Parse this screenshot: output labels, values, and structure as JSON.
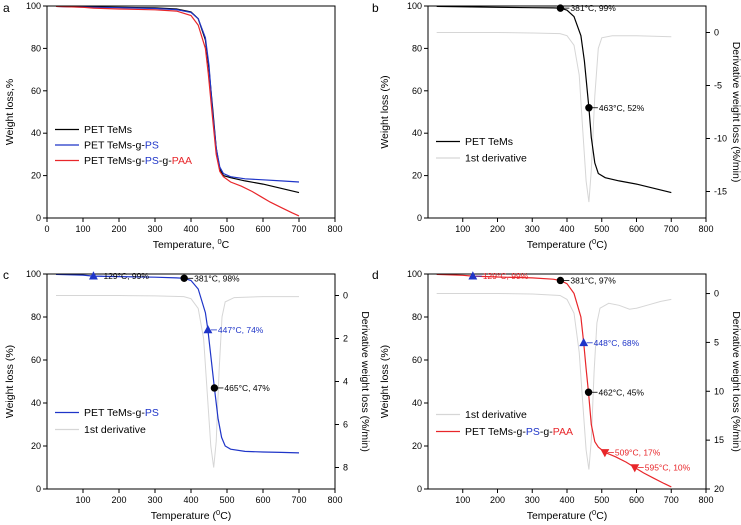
{
  "chart_data": [
    {
      "panel": "a",
      "type": "line",
      "xlabel_prefix": "Temperature, ",
      "xlabel_sup": "0",
      "xlabel_suffix": "C",
      "ylabel": "Weight loss,%",
      "xlim": [
        0,
        800
      ],
      "ylim": [
        0,
        100
      ],
      "xticks": [
        0,
        100,
        200,
        300,
        400,
        500,
        600,
        700,
        800
      ],
      "yticks": [
        0,
        20,
        40,
        60,
        80,
        100
      ],
      "legend": [
        {
          "parts": [
            {
              "t": "PET TeMs",
              "c": "#000000"
            }
          ],
          "color": "#000000"
        },
        {
          "parts": [
            {
              "t": "PET TeMs-g-",
              "c": "#000000"
            },
            {
              "t": "PS",
              "c": "#1f35c8"
            }
          ],
          "color": "#1f35c8"
        },
        {
          "parts": [
            {
              "t": "PET TeMs-g-",
              "c": "#000000"
            },
            {
              "t": "PS",
              "c": "#1f35c8"
            },
            {
              "t": "-g-",
              "c": "#000000"
            },
            {
              "t": "PAA",
              "c": "#e8262a"
            }
          ],
          "color": "#e8262a"
        }
      ],
      "series": [
        {
          "name": "PET TeMs",
          "color": "#000000",
          "x": [
            25,
            100,
            200,
            300,
            360,
            400,
            420,
            440,
            450,
            460,
            470,
            480,
            490,
            510,
            550,
            600,
            650,
            700
          ],
          "y": [
            99.8,
            99.6,
            99.4,
            99.1,
            98.6,
            97.2,
            94,
            84,
            70,
            52,
            33,
            23,
            20,
            19,
            17.5,
            16,
            14,
            12
          ]
        },
        {
          "name": "PET TeMs-g-PS",
          "color": "#1f35c8",
          "x": [
            25,
            100,
            200,
            300,
            360,
            400,
            420,
            440,
            450,
            460,
            470,
            480,
            490,
            510,
            550,
            600,
            650,
            700
          ],
          "y": [
            99.8,
            99.5,
            99.2,
            98.8,
            98.3,
            97,
            94,
            85,
            72,
            50,
            33,
            24,
            21,
            19.5,
            18.5,
            18,
            17.5,
            17
          ]
        },
        {
          "name": "PET TeMs-g-PS-g-PAA",
          "color": "#e8262a",
          "x": [
            25,
            100,
            129,
            200,
            300,
            360,
            400,
            420,
            440,
            448,
            460,
            470,
            480,
            490,
            510,
            540,
            570,
            595,
            620,
            650,
            680,
            700
          ],
          "y": [
            99.8,
            99.4,
            99.0,
            98.6,
            98.2,
            97.6,
            95.5,
            91,
            80,
            68,
            47,
            30,
            22,
            19.5,
            17,
            15,
            12.5,
            10,
            7.5,
            5,
            2.5,
            1
          ]
        }
      ]
    },
    {
      "panel": "b",
      "type": "line",
      "xlabel_prefix": "Temperature (",
      "xlabel_sup": "0",
      "xlabel_suffix": "C)",
      "ylabel": "Weight loss (%)",
      "y2label": "Derivative weight loss (%/min)",
      "xlim": [
        0,
        800
      ],
      "ylim": [
        0,
        100
      ],
      "y2lim": [
        -17.5,
        2.5
      ],
      "y2_inverted": false,
      "xticks": [
        100,
        200,
        300,
        400,
        500,
        600,
        700,
        800
      ],
      "yticks": [
        0,
        20,
        40,
        60,
        80,
        100
      ],
      "y2ticks": [
        0,
        -5,
        -10,
        -15
      ],
      "legend": [
        {
          "parts": [
            {
              "t": "PET TeMs",
              "c": "#000000"
            }
          ],
          "color": "#000000"
        },
        {
          "parts": [
            {
              "t": "1st derivative",
              "c": "#000000"
            }
          ],
          "color": "#d6d6d6"
        }
      ],
      "series": [
        {
          "name": "PET TeMs",
          "color": "#000000",
          "x": [
            25,
            100,
            200,
            300,
            360,
            381,
            400,
            420,
            440,
            450,
            463,
            470,
            480,
            490,
            510,
            550,
            600,
            650,
            700
          ],
          "y": [
            99.8,
            99.6,
            99.4,
            99.2,
            99.1,
            99,
            98,
            95,
            86,
            74,
            52,
            38,
            26,
            21,
            19,
            17.5,
            16,
            14,
            12
          ]
        },
        {
          "name": "1st derivative",
          "color": "#d6d6d6",
          "axis": "y2",
          "x": [
            25,
            100,
            200,
            300,
            380,
            400,
            420,
            435,
            445,
            455,
            463,
            470,
            480,
            490,
            500,
            530,
            600,
            700
          ],
          "y": [
            0,
            0,
            0,
            -0.05,
            -0.1,
            -0.3,
            -1.2,
            -4,
            -9,
            -14,
            -16,
            -13,
            -6,
            -1.5,
            -0.5,
            -0.3,
            -0.3,
            -0.4
          ]
        }
      ],
      "annotations": [
        {
          "x": 381,
          "y": 99,
          "label": "381°C, 99%",
          "marker": "circle",
          "color": "#000000"
        },
        {
          "x": 463,
          "y": 52,
          "label": "463°C, 52%",
          "marker": "circle",
          "color": "#000000"
        }
      ]
    },
    {
      "panel": "c",
      "type": "line",
      "xlabel_prefix": "Temperature (",
      "xlabel_sup": "0",
      "xlabel_suffix": "C)",
      "ylabel": "Weight loss (%)",
      "y2label": "Derivative weight loss (%/min)",
      "xlim": [
        0,
        800
      ],
      "ylim": [
        0,
        100
      ],
      "y2lim": [
        -1,
        9
      ],
      "y2_inverted": true,
      "xticks": [
        100,
        200,
        300,
        400,
        500,
        600,
        700,
        800
      ],
      "yticks": [
        0,
        20,
        40,
        60,
        80,
        100
      ],
      "y2ticks": [
        0,
        2,
        4,
        6,
        8
      ],
      "legend": [
        {
          "parts": [
            {
              "t": "PET TeMs-g-",
              "c": "#000000"
            },
            {
              "t": "PS",
              "c": "#1f35c8"
            }
          ],
          "color": "#1f35c8"
        },
        {
          "parts": [
            {
              "t": "1st derivative",
              "c": "#000000"
            }
          ],
          "color": "#d6d6d6"
        }
      ],
      "series": [
        {
          "name": "PET TeMs-g-PS",
          "color": "#1f35c8",
          "x": [
            25,
            100,
            129,
            200,
            300,
            360,
            381,
            400,
            420,
            440,
            447,
            455,
            465,
            475,
            485,
            495,
            510,
            550,
            600,
            650,
            700
          ],
          "y": [
            99.8,
            99.5,
            99,
            98.8,
            98.5,
            98.2,
            98,
            97,
            93,
            82,
            74,
            62,
            47,
            33,
            24,
            20,
            18.5,
            17.5,
            17.2,
            17,
            16.8
          ]
        },
        {
          "name": "1st derivative",
          "color": "#d6d6d6",
          "axis": "y2",
          "x": [
            25,
            100,
            200,
            300,
            380,
            400,
            420,
            435,
            445,
            455,
            463,
            470,
            478,
            486,
            495,
            520,
            600,
            700
          ],
          "y": [
            0,
            0,
            0,
            0.02,
            0.05,
            0.15,
            0.6,
            2,
            4.5,
            7,
            8,
            6.8,
            3.5,
            1,
            0.3,
            0.1,
            0.05,
            0.05
          ]
        }
      ],
      "annotations": [
        {
          "x": 129,
          "y": 99,
          "label": "129°C, 99%",
          "marker": "triangle-up",
          "color": "#1f35c8",
          "text_color": "#000000"
        },
        {
          "x": 381,
          "y": 98,
          "label": "381°C, 98%",
          "marker": "circle",
          "color": "#000000"
        },
        {
          "x": 447,
          "y": 74,
          "label": "447°C, 74%",
          "marker": "triangle-up",
          "color": "#1f35c8",
          "text_color": "#1f35c8"
        },
        {
          "x": 465,
          "y": 47,
          "label": "465°C, 47%",
          "marker": "circle",
          "color": "#000000"
        }
      ]
    },
    {
      "panel": "d",
      "type": "line",
      "xlabel_prefix": "Temperature (",
      "xlabel_sup": "0",
      "xlabel_suffix": "C)",
      "ylabel": "Weight loss (%)",
      "y2label": "Derivative weight loss (%/min)",
      "xlim": [
        0,
        800
      ],
      "ylim": [
        0,
        100
      ],
      "y2lim": [
        -2,
        20
      ],
      "y2_inverted": true,
      "xticks": [
        100,
        200,
        300,
        400,
        500,
        600,
        700,
        800
      ],
      "yticks": [
        0,
        20,
        40,
        60,
        80,
        100
      ],
      "y2ticks": [
        0,
        5,
        10,
        15,
        20
      ],
      "legend": [
        {
          "parts": [
            {
              "t": "1st derivative",
              "c": "#000000"
            }
          ],
          "color": "#d6d6d6"
        },
        {
          "parts": [
            {
              "t": "PET TeMs-g-",
              "c": "#000000"
            },
            {
              "t": "PS",
              "c": "#1f35c8"
            },
            {
              "t": "-g-",
              "c": "#000000"
            },
            {
              "t": "PAA",
              "c": "#e8262a"
            }
          ],
          "color": "#e8262a"
        }
      ],
      "series": [
        {
          "name": "PET TeMs-g-PS-g-PAA",
          "color": "#e8262a",
          "x": [
            25,
            100,
            129,
            200,
            300,
            360,
            381,
            400,
            420,
            440,
            448,
            455,
            462,
            470,
            480,
            490,
            509,
            540,
            570,
            595,
            620,
            650,
            680,
            700
          ],
          "y": [
            99.8,
            99.4,
            99,
            98.6,
            98.2,
            97.6,
            97,
            95.5,
            91,
            80,
            68,
            56,
            45,
            30,
            22,
            19.5,
            17,
            15,
            12.5,
            10,
            7.5,
            5,
            2.5,
            1
          ]
        },
        {
          "name": "1st derivative",
          "color": "#d6d6d6",
          "axis": "y2",
          "x": [
            25,
            100,
            200,
            300,
            380,
            400,
            420,
            435,
            445,
            455,
            463,
            470,
            478,
            486,
            495,
            520,
            550,
            580,
            600,
            630,
            670,
            700
          ],
          "y": [
            0,
            0,
            0,
            0.05,
            0.2,
            0.6,
            2,
            6,
            11,
            16,
            18,
            15,
            8,
            3,
            1.5,
            1,
            1.2,
            1.6,
            1.5,
            1.2,
            0.8,
            0.6
          ]
        }
      ],
      "annotations": [
        {
          "x": 129,
          "y": 99,
          "label": "129°C, 99%",
          "marker": "triangle-up",
          "color": "#1f35c8",
          "text_color": "#e8262a"
        },
        {
          "x": 381,
          "y": 97,
          "label": "381°C, 97%",
          "marker": "circle",
          "color": "#000000"
        },
        {
          "x": 448,
          "y": 68,
          "label": "448°C, 68%",
          "marker": "triangle-up",
          "color": "#1f35c8",
          "text_color": "#1f35c8"
        },
        {
          "x": 462,
          "y": 45,
          "label": "462°C, 45%",
          "marker": "circle",
          "color": "#000000"
        },
        {
          "x": 509,
          "y": 17,
          "label": "509°C, 17%",
          "marker": "triangle-down",
          "color": "#e8262a",
          "text_color": "#e8262a"
        },
        {
          "x": 595,
          "y": 10,
          "label": "595°C, 10%",
          "marker": "triangle-down",
          "color": "#e8262a",
          "text_color": "#e8262a"
        }
      ]
    }
  ]
}
